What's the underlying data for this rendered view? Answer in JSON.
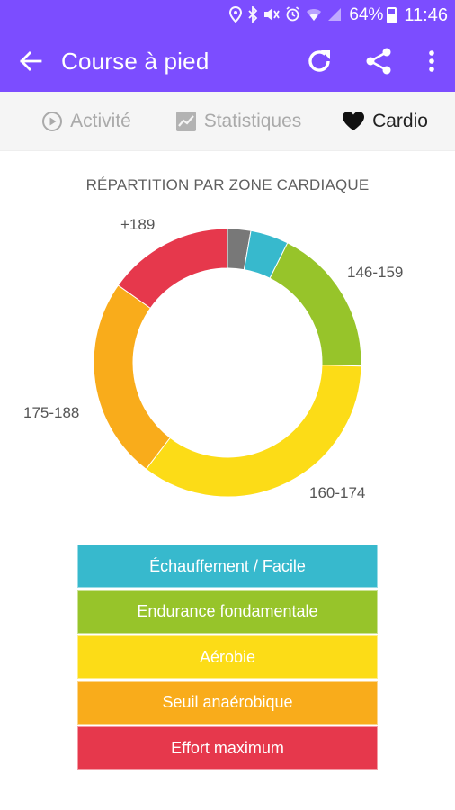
{
  "status_bar": {
    "battery": "64%",
    "time": "11:46"
  },
  "app_bar": {
    "title": "Course à pied",
    "icons": [
      "back-arrow-icon",
      "refresh-icon",
      "share-icon",
      "more-vert-icon"
    ]
  },
  "tabs": [
    {
      "label": "Activité",
      "icon": "play-circle-icon",
      "active": false
    },
    {
      "label": "Statistiques",
      "icon": "chart-icon",
      "active": false
    },
    {
      "label": "Cardio",
      "icon": "heart-icon",
      "active": true
    }
  ],
  "chart_data": {
    "type": "pie",
    "title": "RÉPARTITION PAR ZONE CARDIAQUE",
    "categories": [
      "",
      "",
      "146-159",
      "160-174",
      "175-188",
      "+189"
    ],
    "values": [
      2.8,
      4.6,
      18.0,
      35.0,
      24.4,
      15.2
    ],
    "colors": [
      "#787878",
      "#37b9cd",
      "#97c42a",
      "#fcdc17",
      "#f9ac1b",
      "#e6384c"
    ],
    "legend_placement": "bottom"
  },
  "legend": [
    {
      "label": "Échauffement / Facile",
      "color": "#37b9cd"
    },
    {
      "label": "Endurance fondamentale",
      "color": "#97c42a"
    },
    {
      "label": "Aérobie",
      "color": "#fcdc17"
    },
    {
      "label": "Seuil anaérobique",
      "color": "#f9ac1b"
    },
    {
      "label": "Effort maximum",
      "color": "#e6384c"
    }
  ]
}
